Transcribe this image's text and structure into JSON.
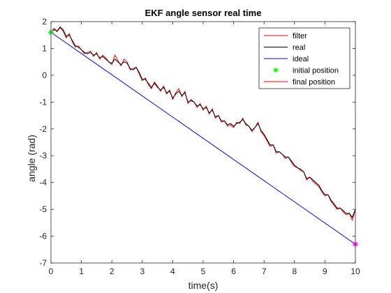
{
  "chart_data": {
    "type": "line",
    "title": "EKF angle sensor real time",
    "xlabel": "time(s)",
    "ylabel": "angle (rad)",
    "xlim": [
      0,
      10
    ],
    "ylim": [
      -7,
      2
    ],
    "xticks": [
      "0",
      "1",
      "2",
      "3",
      "4",
      "5",
      "6",
      "7",
      "8",
      "9",
      "10"
    ],
    "yticks": [
      "2",
      "1",
      "0",
      "-1",
      "-2",
      "-3",
      "-4",
      "-5",
      "-6",
      "-7"
    ],
    "grid": false,
    "legend_position": "top-right",
    "legend": [
      "filter",
      "real",
      "ideal",
      "initial position",
      "final position"
    ],
    "colors": {
      "filter": "#ff0000",
      "real": "#000000",
      "ideal": "#0000ff",
      "initial": "#00ff00",
      "final": "#ff00ff",
      "final_legend": "#ff0000",
      "axis": "#262626"
    },
    "series": [
      {
        "name": "filter",
        "x": [
          0,
          0.1,
          0.2,
          0.3,
          0.4,
          0.5,
          0.6,
          0.7,
          0.8,
          0.9,
          1,
          1.1,
          1.2,
          1.3,
          1.4,
          1.5,
          1.6,
          1.7,
          1.8,
          1.9,
          2,
          2.1,
          2.2,
          2.3,
          2.4,
          2.5,
          2.6,
          2.7,
          2.8,
          2.9,
          3,
          3.1,
          3.2,
          3.3,
          3.4,
          3.5,
          3.6,
          3.7,
          3.8,
          3.9,
          4,
          4.1,
          4.2,
          4.3,
          4.4,
          4.5,
          4.6,
          4.7,
          4.8,
          4.9,
          5,
          5.1,
          5.2,
          5.3,
          5.4,
          5.5,
          5.6,
          5.7,
          5.8,
          5.9,
          6,
          6.1,
          6.2,
          6.3,
          6.4,
          6.5,
          6.6,
          6.7,
          6.8,
          6.9,
          7,
          7.1,
          7.2,
          7.3,
          7.4,
          7.5,
          7.6,
          7.7,
          7.8,
          7.9,
          8,
          8.1,
          8.2,
          8.3,
          8.4,
          8.5,
          8.6,
          8.7,
          8.8,
          8.9,
          9,
          9.1,
          9.2,
          9.3,
          9.4,
          9.5,
          9.6,
          9.7,
          9.8,
          9.9,
          10
        ],
        "y": [
          1.6,
          1.75,
          1.62,
          1.78,
          1.65,
          1.4,
          1.55,
          1.25,
          1.05,
          1.1,
          0.95,
          0.8,
          0.85,
          0.9,
          0.7,
          0.85,
          0.6,
          0.75,
          0.65,
          0.5,
          0.4,
          0.75,
          0.55,
          0.35,
          0.6,
          0.5,
          0.2,
          0.25,
          0.3,
          0.05,
          -0.2,
          -0.1,
          -0.35,
          -0.5,
          -0.25,
          -0.4,
          -0.6,
          -0.4,
          -0.7,
          -0.55,
          -0.9,
          -0.65,
          -0.5,
          -0.8,
          -0.6,
          -1.05,
          -0.9,
          -1.0,
          -1.2,
          -1.05,
          -1.3,
          -1.15,
          -1.45,
          -1.25,
          -1.6,
          -1.5,
          -1.75,
          -1.7,
          -1.9,
          -1.85,
          -1.95,
          -1.75,
          -1.8,
          -1.6,
          -1.85,
          -1.9,
          -2.1,
          -1.95,
          -1.75,
          -2.1,
          -2.25,
          -2.45,
          -2.65,
          -2.6,
          -2.9,
          -2.85,
          -2.95,
          -3.1,
          -3.05,
          -3.25,
          -3.4,
          -3.45,
          -3.55,
          -3.6,
          -3.9,
          -3.8,
          -3.95,
          -4.05,
          -4.15,
          -4.35,
          -4.5,
          -4.45,
          -4.7,
          -4.85,
          -5.0,
          -4.95,
          -5.1,
          -5.2,
          -5.15,
          -5.4,
          -5.0
        ]
      },
      {
        "name": "real",
        "x": [
          0,
          0.1,
          0.2,
          0.3,
          0.4,
          0.5,
          0.6,
          0.7,
          0.8,
          0.9,
          1,
          1.1,
          1.2,
          1.3,
          1.4,
          1.5,
          1.6,
          1.7,
          1.8,
          1.9,
          2,
          2.1,
          2.2,
          2.3,
          2.4,
          2.5,
          2.6,
          2.7,
          2.8,
          2.9,
          3,
          3.1,
          3.2,
          3.3,
          3.4,
          3.5,
          3.6,
          3.7,
          3.8,
          3.9,
          4,
          4.1,
          4.2,
          4.3,
          4.4,
          4.5,
          4.6,
          4.7,
          4.8,
          4.9,
          5,
          5.1,
          5.2,
          5.3,
          5.4,
          5.5,
          5.6,
          5.7,
          5.8,
          5.9,
          6,
          6.1,
          6.2,
          6.3,
          6.4,
          6.5,
          6.6,
          6.7,
          6.8,
          6.9,
          7,
          7.1,
          7.2,
          7.3,
          7.4,
          7.5,
          7.6,
          7.7,
          7.8,
          7.9,
          8,
          8.1,
          8.2,
          8.3,
          8.4,
          8.5,
          8.6,
          8.7,
          8.8,
          8.9,
          9,
          9.1,
          9.2,
          9.3,
          9.4,
          9.5,
          9.6,
          9.7,
          9.8,
          9.9,
          10
        ],
        "y": [
          1.6,
          1.7,
          1.65,
          1.8,
          1.7,
          1.45,
          1.5,
          1.3,
          1.1,
          1.05,
          0.95,
          0.85,
          0.8,
          0.85,
          0.75,
          0.8,
          0.65,
          0.7,
          0.6,
          0.5,
          0.45,
          0.6,
          0.5,
          0.4,
          0.5,
          0.45,
          0.25,
          0.2,
          0.3,
          0.1,
          -0.15,
          -0.15,
          -0.3,
          -0.45,
          -0.3,
          -0.45,
          -0.55,
          -0.45,
          -0.65,
          -0.6,
          -0.85,
          -0.7,
          -0.6,
          -0.75,
          -0.65,
          -1.0,
          -0.95,
          -1.0,
          -1.15,
          -1.1,
          -1.25,
          -1.2,
          -1.4,
          -1.3,
          -1.55,
          -1.5,
          -1.7,
          -1.7,
          -1.85,
          -1.8,
          -1.9,
          -1.8,
          -1.75,
          -1.65,
          -1.8,
          -1.9,
          -2.05,
          -1.95,
          -1.8,
          -2.05,
          -2.2,
          -2.4,
          -2.6,
          -2.6,
          -2.85,
          -2.85,
          -2.95,
          -3.05,
          -3.05,
          -3.2,
          -3.35,
          -3.45,
          -3.5,
          -3.6,
          -3.85,
          -3.8,
          -3.9,
          -4.0,
          -4.1,
          -4.3,
          -4.45,
          -4.45,
          -4.65,
          -4.8,
          -4.95,
          -4.95,
          -5.05,
          -5.15,
          -5.15,
          -5.3,
          -5.0
        ]
      },
      {
        "name": "ideal",
        "x": [
          0,
          10
        ],
        "y": [
          1.6,
          -6.3
        ]
      }
    ],
    "markers": [
      {
        "name": "initial position",
        "x": 0,
        "y": 1.6,
        "symbol": "*"
      },
      {
        "name": "final position",
        "x": 10,
        "y": -6.3,
        "symbol": "*"
      }
    ]
  }
}
